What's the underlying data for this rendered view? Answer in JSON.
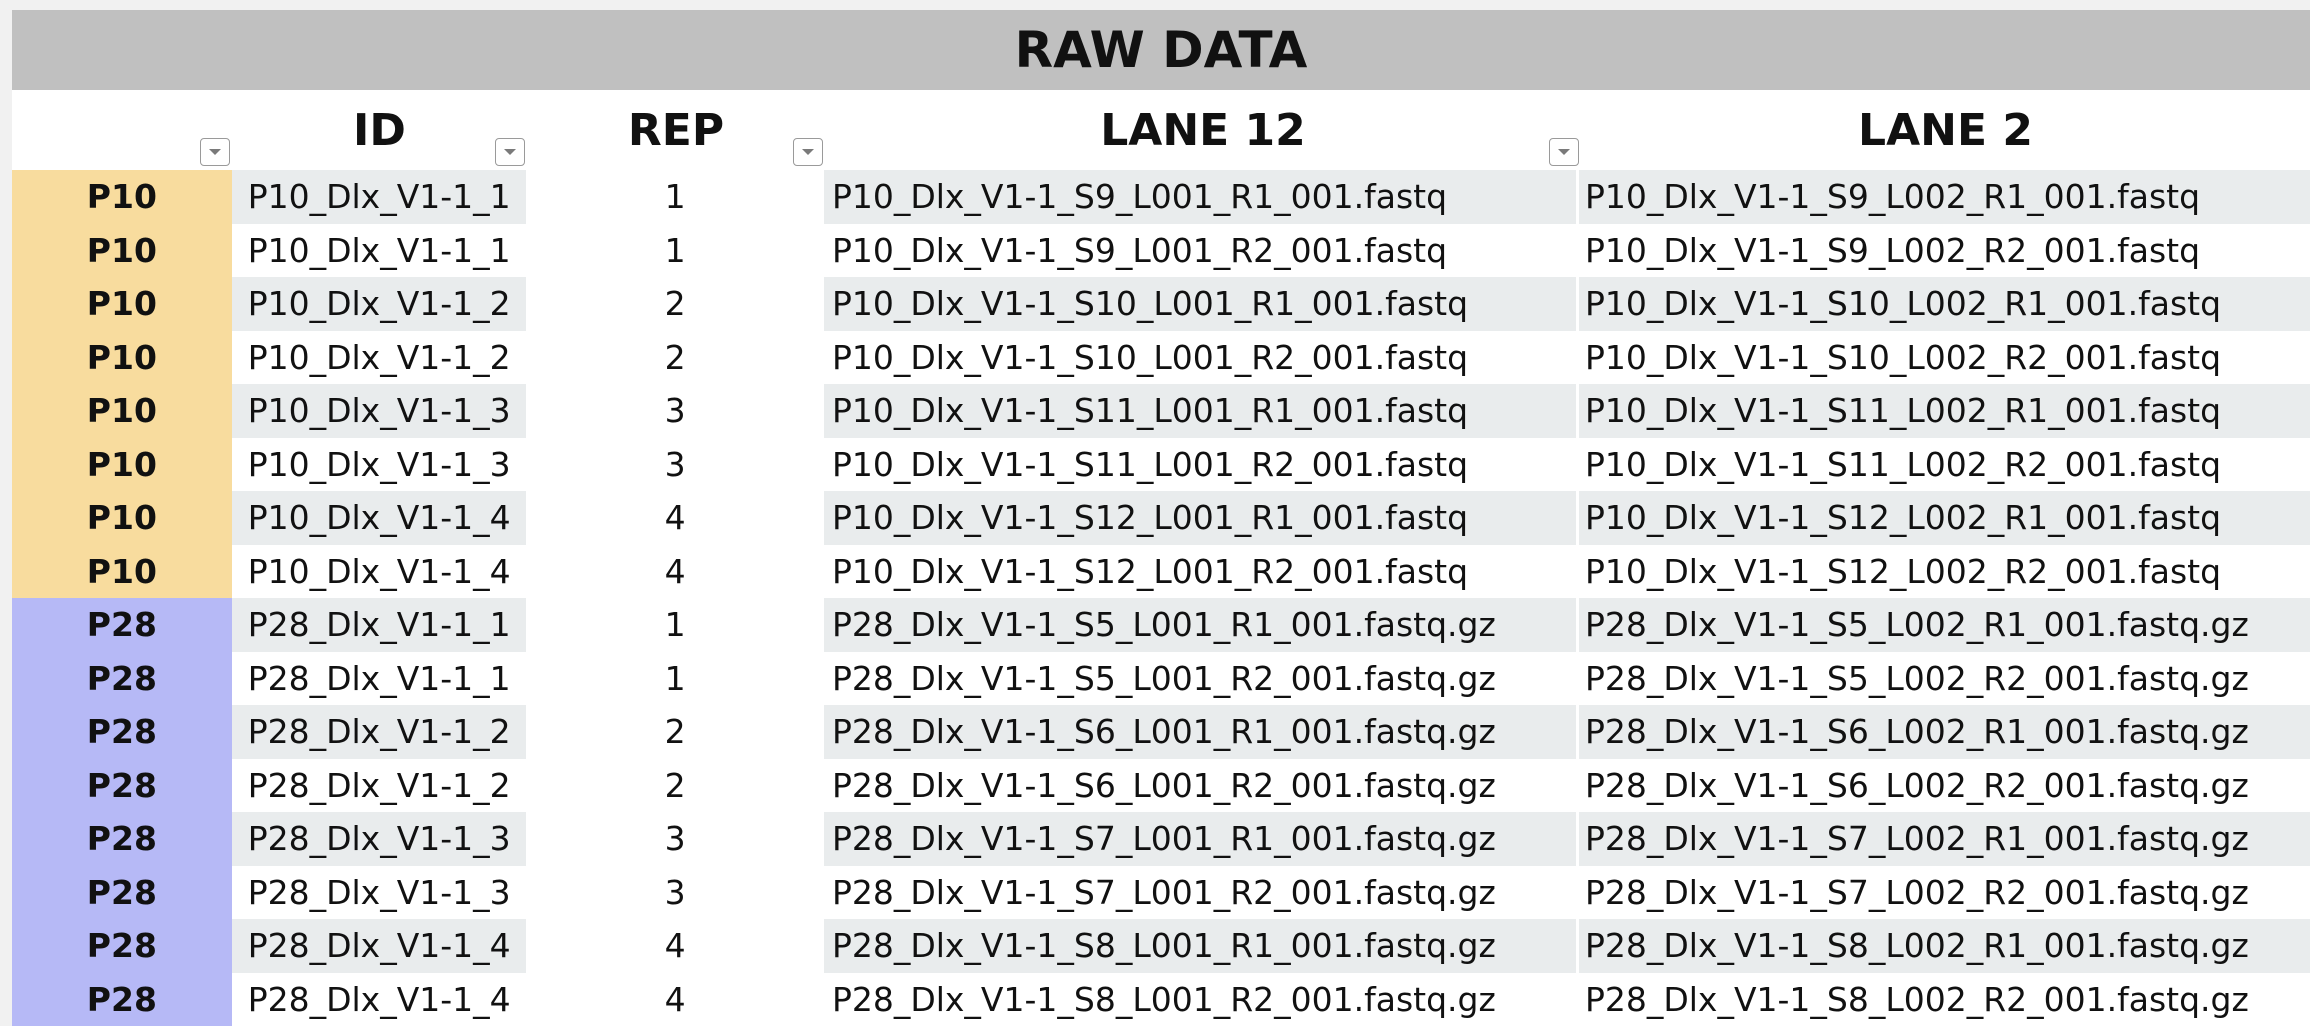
{
  "sheet": {
    "title": "RAW DATA",
    "headers": {
      "group": "",
      "id": "ID",
      "rep": "REP",
      "lane12": "LANE 12",
      "lane2": "LANE 2"
    },
    "filter_icon": "dropdown-triangle-icon",
    "colors": {
      "title_bg": "#c0c0c0",
      "p10_bg": "#f8dc9e",
      "p28_bg": "#b6b9f6",
      "band_bg": "#e9eced"
    },
    "rows": [
      {
        "group": "P10",
        "id": "P10_Dlx_V1-1_1",
        "rep": "1",
        "lane12": "P10_Dlx_V1-1_S9_L001_R1_001.fastq",
        "lane2": "P10_Dlx_V1-1_S9_L002_R1_001.fastq"
      },
      {
        "group": "P10",
        "id": "P10_Dlx_V1-1_1",
        "rep": "1",
        "lane12": "P10_Dlx_V1-1_S9_L001_R2_001.fastq",
        "lane2": "P10_Dlx_V1-1_S9_L002_R2_001.fastq"
      },
      {
        "group": "P10",
        "id": "P10_Dlx_V1-1_2",
        "rep": "2",
        "lane12": "P10_Dlx_V1-1_S10_L001_R1_001.fastq",
        "lane2": "P10_Dlx_V1-1_S10_L002_R1_001.fastq"
      },
      {
        "group": "P10",
        "id": "P10_Dlx_V1-1_2",
        "rep": "2",
        "lane12": "P10_Dlx_V1-1_S10_L001_R2_001.fastq",
        "lane2": "P10_Dlx_V1-1_S10_L002_R2_001.fastq"
      },
      {
        "group": "P10",
        "id": "P10_Dlx_V1-1_3",
        "rep": "3",
        "lane12": "P10_Dlx_V1-1_S11_L001_R1_001.fastq",
        "lane2": "P10_Dlx_V1-1_S11_L002_R1_001.fastq"
      },
      {
        "group": "P10",
        "id": "P10_Dlx_V1-1_3",
        "rep": "3",
        "lane12": "P10_Dlx_V1-1_S11_L001_R2_001.fastq",
        "lane2": "P10_Dlx_V1-1_S11_L002_R2_001.fastq"
      },
      {
        "group": "P10",
        "id": "P10_Dlx_V1-1_4",
        "rep": "4",
        "lane12": "P10_Dlx_V1-1_S12_L001_R1_001.fastq",
        "lane2": "P10_Dlx_V1-1_S12_L002_R1_001.fastq"
      },
      {
        "group": "P10",
        "id": "P10_Dlx_V1-1_4",
        "rep": "4",
        "lane12": "P10_Dlx_V1-1_S12_L001_R2_001.fastq",
        "lane2": "P10_Dlx_V1-1_S12_L002_R2_001.fastq"
      },
      {
        "group": "P28",
        "id": "P28_Dlx_V1-1_1",
        "rep": "1",
        "lane12": "P28_Dlx_V1-1_S5_L001_R1_001.fastq.gz",
        "lane2": "P28_Dlx_V1-1_S5_L002_R1_001.fastq.gz"
      },
      {
        "group": "P28",
        "id": "P28_Dlx_V1-1_1",
        "rep": "1",
        "lane12": "P28_Dlx_V1-1_S5_L001_R2_001.fastq.gz",
        "lane2": "P28_Dlx_V1-1_S5_L002_R2_001.fastq.gz"
      },
      {
        "group": "P28",
        "id": "P28_Dlx_V1-1_2",
        "rep": "2",
        "lane12": "P28_Dlx_V1-1_S6_L001_R1_001.fastq.gz",
        "lane2": "P28_Dlx_V1-1_S6_L002_R1_001.fastq.gz"
      },
      {
        "group": "P28",
        "id": "P28_Dlx_V1-1_2",
        "rep": "2",
        "lane12": "P28_Dlx_V1-1_S6_L001_R2_001.fastq.gz",
        "lane2": "P28_Dlx_V1-1_S6_L002_R2_001.fastq.gz"
      },
      {
        "group": "P28",
        "id": "P28_Dlx_V1-1_3",
        "rep": "3",
        "lane12": "P28_Dlx_V1-1_S7_L001_R1_001.fastq.gz",
        "lane2": "P28_Dlx_V1-1_S7_L002_R1_001.fastq.gz"
      },
      {
        "group": "P28",
        "id": "P28_Dlx_V1-1_3",
        "rep": "3",
        "lane12": "P28_Dlx_V1-1_S7_L001_R2_001.fastq.gz",
        "lane2": "P28_Dlx_V1-1_S7_L002_R2_001.fastq.gz"
      },
      {
        "group": "P28",
        "id": "P28_Dlx_V1-1_4",
        "rep": "4",
        "lane12": "P28_Dlx_V1-1_S8_L001_R1_001.fastq.gz",
        "lane2": "P28_Dlx_V1-1_S8_L002_R1_001.fastq.gz"
      },
      {
        "group": "P28",
        "id": "P28_Dlx_V1-1_4",
        "rep": "4",
        "lane12": "P28_Dlx_V1-1_S8_L001_R2_001.fastq.gz",
        "lane2": "P28_Dlx_V1-1_S8_L002_R2_001.fastq.gz"
      }
    ]
  }
}
